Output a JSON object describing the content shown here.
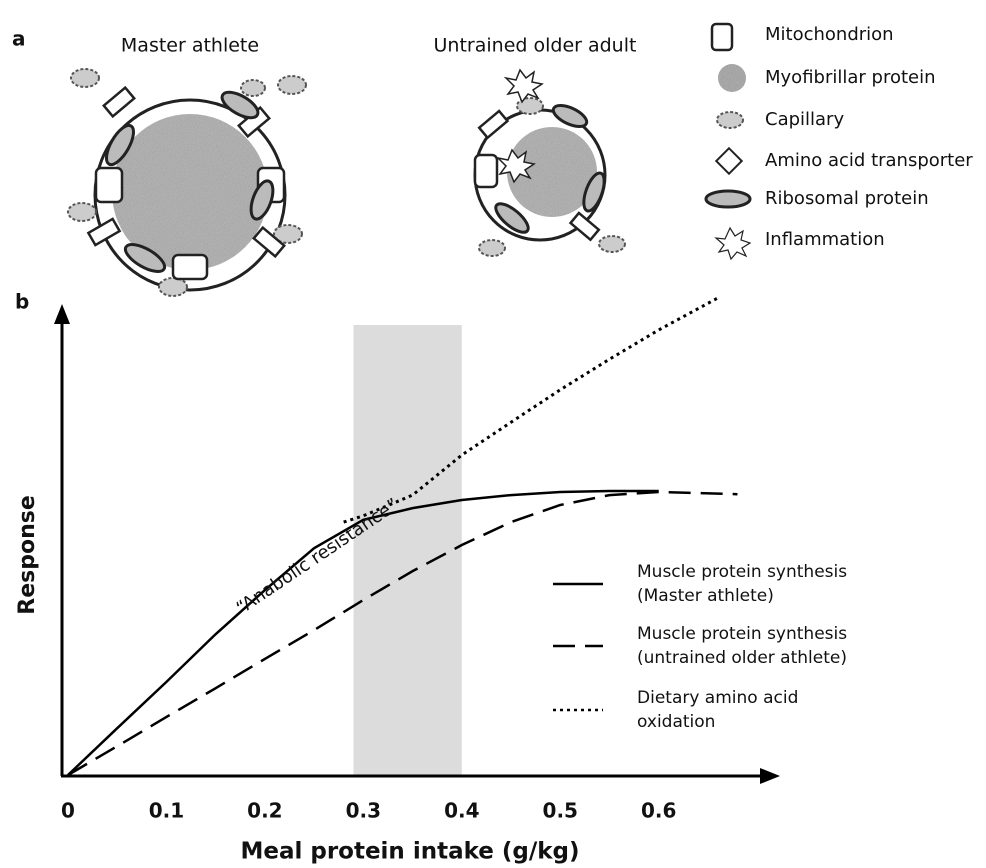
{
  "panel_a": {
    "label": "a",
    "cells": [
      "Master athlete",
      "Untrained older adult"
    ],
    "legend": [
      "Mitochondrion",
      "Myofibrillar protein",
      "Capillary",
      "Amino acid transporter",
      "Ribosomal protein",
      "Inflammation"
    ]
  },
  "chart_data": {
    "type": "line",
    "panel_label": "b",
    "x_label": "Meal protein intake (g/kg)",
    "y_label": "Response",
    "annotation": "“Anabolic resistance”",
    "xlim": [
      0,
      0.71
    ],
    "ylim": [
      0,
      100
    ],
    "xticks": [
      0,
      0.1,
      0.2,
      0.3,
      0.4,
      0.5,
      0.6
    ],
    "yticks": [],
    "shaded_region": [
      0.29,
      0.4
    ],
    "shade_color": "#dcdcdc",
    "series": [
      {
        "name": "Muscle protein synthesis\n(Master athlete)",
        "color": "#000000",
        "style": "solid",
        "x": [
          0,
          0.05,
          0.1,
          0.15,
          0.2,
          0.25,
          0.3,
          0.35,
          0.4,
          0.45,
          0.5,
          0.55,
          0.6
        ],
        "values": [
          0,
          10.4,
          20.7,
          31.3,
          41.1,
          50.4,
          56.7,
          59.3,
          61.1,
          62.2,
          62.9,
          63.1,
          63.1
        ]
      },
      {
        "name": "Muscle protein synthesis\n(untrained older athlete)",
        "color": "#000000",
        "style": "dashed",
        "x": [
          0,
          0.05,
          0.1,
          0.15,
          0.2,
          0.25,
          0.3,
          0.35,
          0.4,
          0.45,
          0.5,
          0.55,
          0.6,
          0.68
        ],
        "values": [
          0,
          6.4,
          12.9,
          19.3,
          25.8,
          32.2,
          38.9,
          45.3,
          51.1,
          56.2,
          60,
          62.2,
          62.9,
          62.4
        ]
      },
      {
        "name": "Dietary amino acid\noxidation",
        "color": "#000000",
        "style": "dotted",
        "x": [
          0.28,
          0.3,
          0.35,
          0.4,
          0.45,
          0.5,
          0.55,
          0.6,
          0.66
        ],
        "values": [
          56.2,
          57.6,
          62.2,
          71.1,
          78.4,
          85.6,
          92.4,
          98.9,
          106
        ]
      }
    ]
  }
}
